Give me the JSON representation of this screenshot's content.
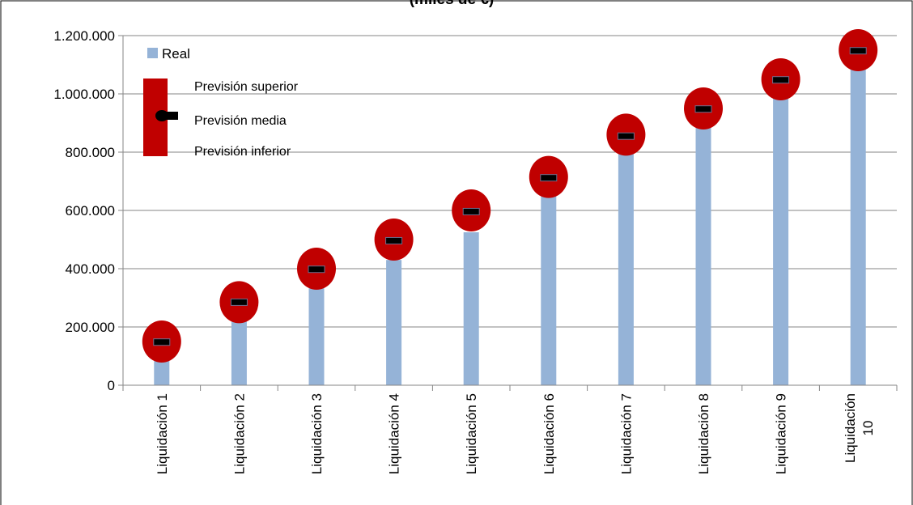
{
  "chart_data": {
    "type": "bar",
    "title": "(miles de €)",
    "xlabel": "",
    "ylabel": "",
    "ylim": [
      0,
      1200000
    ],
    "yticks": [
      0,
      200000,
      400000,
      600000,
      800000,
      1000000,
      1200000
    ],
    "ytick_labels": [
      "0",
      "200.000",
      "400.000",
      "600.000",
      "800.000",
      "1.000.000",
      "1.200.000"
    ],
    "grid": true,
    "legend_position": "top-left",
    "categories": [
      "Liquidación 1",
      "Liquidación 2",
      "Liquidación 3",
      "Liquidación 4",
      "Liquidación 5",
      "Liquidación 6",
      "Liquidación 7",
      "Liquidación 8",
      "Liquidación 9",
      "Liquidación 10"
    ],
    "series": [
      {
        "name": "Real",
        "type": "bar",
        "color": "#95b3d7",
        "values": [
          95000,
          240000,
          335000,
          430000,
          525000,
          650000,
          800000,
          890000,
          1000000,
          1100000
        ]
      },
      {
        "name": "Previsión superior",
        "type": "marker",
        "color": "#c00000",
        "values": [
          150000,
          285000,
          400000,
          500000,
          600000,
          715000,
          860000,
          950000,
          1050000,
          1150000
        ]
      },
      {
        "name": "Previsión media",
        "type": "marker",
        "color": "#000000",
        "values": [
          148000,
          285000,
          398000,
          496000,
          596000,
          712000,
          855000,
          948000,
          1048000,
          1148000
        ]
      },
      {
        "name": "Previsión inferior",
        "type": "marker",
        "color": "#c00000",
        "values": [
          146000,
          283000,
          396000,
          494000,
          594000,
          710000,
          853000,
          946000,
          1046000,
          1146000
        ]
      }
    ]
  }
}
